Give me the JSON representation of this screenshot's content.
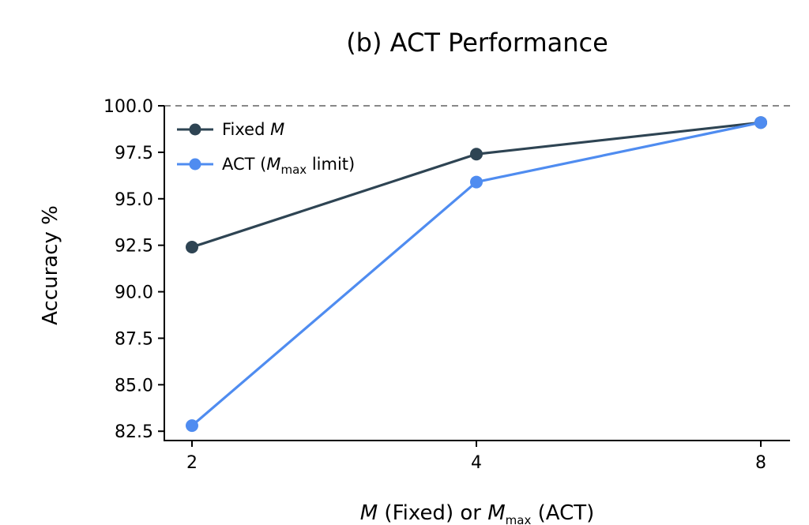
{
  "chart_data": {
    "type": "line",
    "title": "(b) ACT Performance",
    "xlabel": {
      "var": "M",
      "fixed_text": " (Fixed) or ",
      "var2": "M",
      "var2_sub": "max",
      "act_text": " (ACT)"
    },
    "ylabel": "Accuracy %",
    "x": [
      2,
      4,
      8
    ],
    "x_tick_labels": [
      "2",
      "4",
      "8"
    ],
    "y_ticks": [
      "82.5",
      "85.0",
      "87.5",
      "90.0",
      "92.5",
      "95.0",
      "97.5",
      "100.0"
    ],
    "ylim": [
      82.0,
      100.0
    ],
    "reference_line": 100.0,
    "series": [
      {
        "name_text": "Fixed ",
        "name_var": "M",
        "values": [
          92.4,
          97.4,
          99.1
        ],
        "color": "#2e4453"
      },
      {
        "name_text": "ACT (",
        "name_var": "M",
        "name_sub": "max",
        "name_tail": " limit)",
        "values": [
          82.8,
          95.9,
          99.1
        ],
        "color": "#4f8cf0"
      }
    ],
    "legend_position": "top-left",
    "grid": false
  }
}
